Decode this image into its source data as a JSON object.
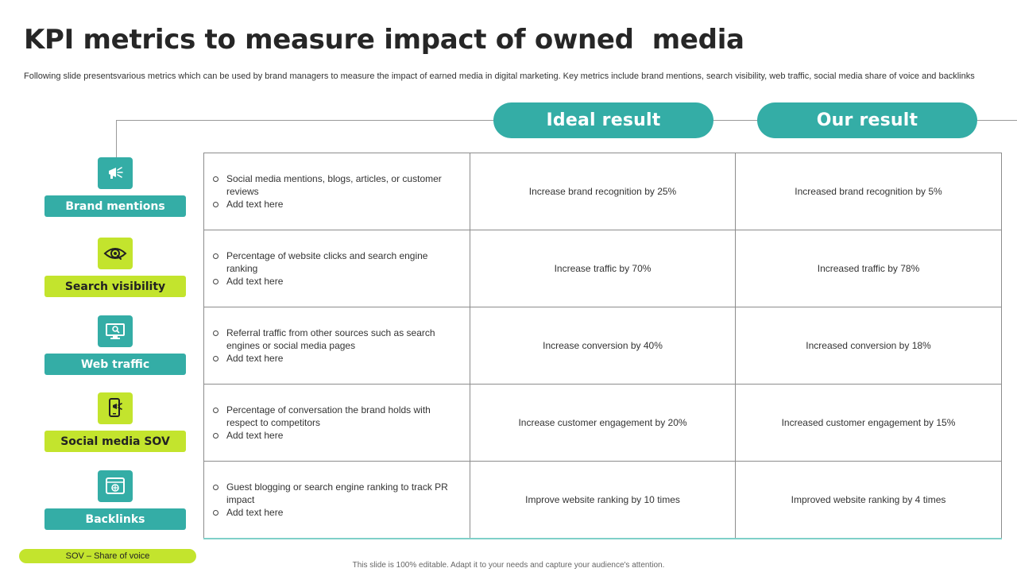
{
  "title": "KPI metrics to measure impact of owned  media",
  "subtitle": "Following slide presentsvarious metrics which can be used by brand managers to measure the impact of earned media in digital marketing. Key metrics include brand mentions, search visibility, web traffic, social media share of voice and backlinks",
  "headers": {
    "ideal": "Ideal result",
    "ours": "Our result"
  },
  "colors": {
    "teal": "#34ada6",
    "lime": "#c3e42d"
  },
  "rows": [
    {
      "metric": "Brand mentions",
      "icon": "megaphone-icon",
      "theme": "teal",
      "desc": "Social media mentions, blogs, articles, or customer reviews",
      "add": "Add text here",
      "ideal": "Increase brand recognition  by 25%",
      "ours": "Increased brand recognition  by 5%"
    },
    {
      "metric": "Search visibility",
      "icon": "eye-icon",
      "theme": "lime",
      "desc": "Percentage of website clicks and search engine ranking",
      "add": "Add text here",
      "ideal": "Increase traffic  by 70%",
      "ours": "Increased traffic  by 78%"
    },
    {
      "metric": "Web traffic",
      "icon": "monitor-search-icon",
      "theme": "teal",
      "desc": "Referral  traffic from other sources such as search engines or social media pages",
      "add": "Add text here",
      "ideal": "Increase conversion  by 40%",
      "ours": "Increased conversion  by 18%"
    },
    {
      "metric": "Social media SOV",
      "icon": "phone-megaphone-icon",
      "theme": "lime",
      "desc": "Percentage of conversation  the brand holds with respect to competitors",
      "add": "Add text here",
      "ideal": "Increase customer engagement  by 20%",
      "ours": "Increased customer engagement  by 15%"
    },
    {
      "metric": "Backlinks",
      "icon": "browser-link-icon",
      "theme": "teal",
      "desc": "Guest blogging  or search engine ranking to track PR impact",
      "add": "Add text here",
      "ideal": "Improve  website ranking by 10 times",
      "ours": "Improved  website ranking by 4 times"
    }
  ],
  "sov_note": "SOV  – Share of voice",
  "footer": "This slide is 100% editable.  Adapt it to your needs and capture your audience's attention."
}
